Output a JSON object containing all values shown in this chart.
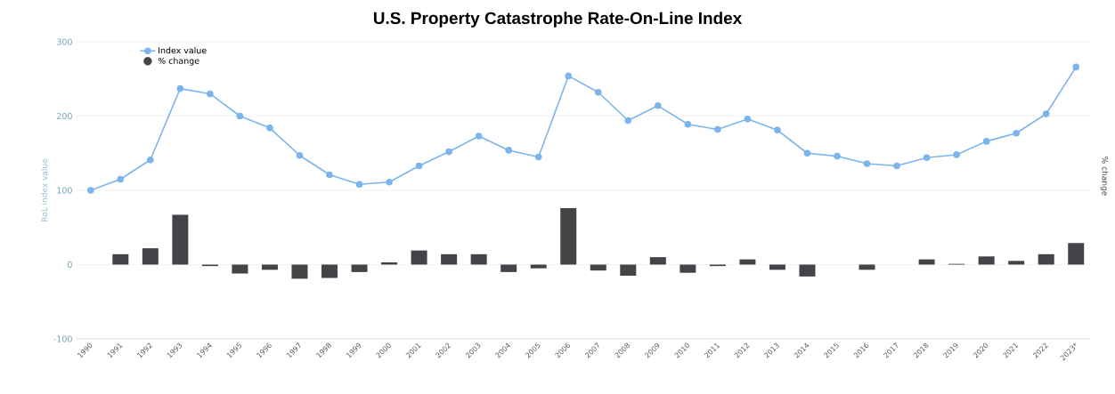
{
  "chart_data": {
    "type": "line",
    "title": "U.S. Property Catastrophe Rate-On-Line Index",
    "ylabel": "RoL index value",
    "y2label": "% change",
    "categories": [
      "1990",
      "1991",
      "1992",
      "1993",
      "1994",
      "1995",
      "1996",
      "1997",
      "1998",
      "1999",
      "2000",
      "2001",
      "2002",
      "2003",
      "2004",
      "2005",
      "2006",
      "2007",
      "2008",
      "2009",
      "2010",
      "2011",
      "2012",
      "2013",
      "2014",
      "2015",
      "2016",
      "2017",
      "2018",
      "2019",
      "2020",
      "2021",
      "2022",
      "2023*"
    ],
    "series": [
      {
        "name": "Index value",
        "color": "#7cb5ec",
        "values": [
          100,
          115,
          141,
          237,
          230,
          200,
          184,
          147,
          121,
          108,
          111,
          133,
          152,
          173,
          154,
          145,
          254,
          232,
          194,
          214,
          189,
          182,
          196,
          181,
          150,
          146,
          136,
          133,
          144,
          148,
          166,
          177,
          203,
          266
        ]
      },
      {
        "name": "% change",
        "type": "bar",
        "color": "#434348",
        "values": [
          null,
          14,
          22,
          67,
          -2,
          -12,
          -7,
          -19,
          -18,
          -10,
          3,
          19,
          14,
          14,
          -10,
          -5,
          76,
          -8,
          -15,
          10,
          -11,
          -2,
          7,
          -7,
          -16,
          null,
          -7,
          null,
          7,
          1,
          11,
          5,
          14,
          29
        ]
      }
    ],
    "ylim": [
      -100,
      300
    ],
    "yticks": [
      -100,
      0,
      100,
      200,
      300
    ],
    "grid": "y",
    "legend": "top left",
    "marker": "circle"
  }
}
